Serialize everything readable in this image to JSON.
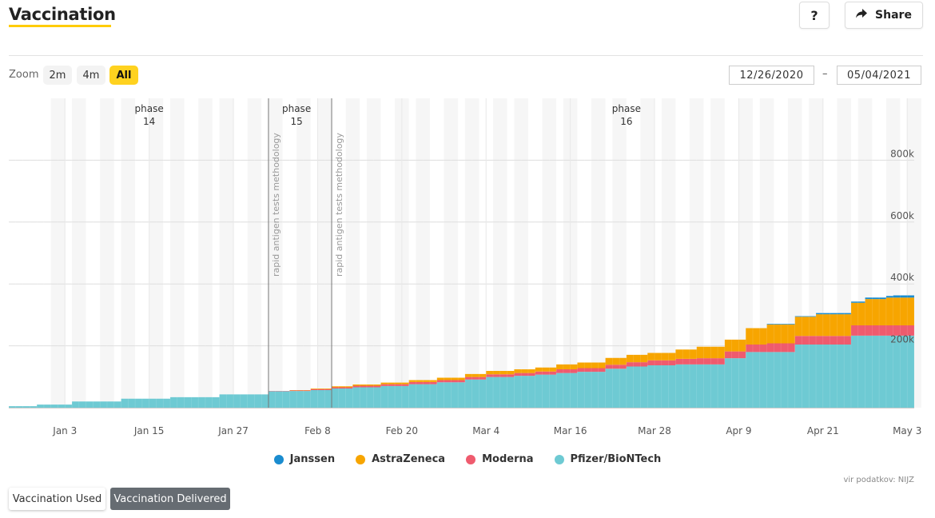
{
  "header": {
    "title": "Vaccination",
    "help_label": "?",
    "share_label": "Share",
    "share_icon": "share-arrow-icon"
  },
  "zoom": {
    "label": "Zoom",
    "options": [
      "2m",
      "4m",
      "All"
    ],
    "selected": "All"
  },
  "range": {
    "from": "12/26/2020",
    "to": "05/04/2021",
    "separator": "–"
  },
  "source": "vir podatkov: NIJZ",
  "tabs": {
    "used_label": "Vaccination Used",
    "delivered_label": "Vaccination Delivered",
    "selected": "Vaccination Delivered"
  },
  "colors": {
    "accent": "#ffcc00",
    "janssen": "#1a8ccf",
    "astrazeneca": "#f7a500",
    "moderna": "#ef5b6e",
    "pfizer": "#6ecad3",
    "active_tab": "#666c72"
  },
  "chart_data": {
    "type": "area",
    "stacking": "normal",
    "step": true,
    "title": "",
    "xlabel": "",
    "ylabel": "",
    "x_start": "2020-12-26",
    "x_end": "2021-05-04",
    "ylim": [
      0,
      1000000
    ],
    "yticks": [
      200000,
      400000,
      600000,
      800000
    ],
    "ytick_labels": [
      "200k",
      "400k",
      "600k",
      "800k"
    ],
    "xticks": [
      "2021-01-03",
      "2021-01-15",
      "2021-01-27",
      "2021-02-08",
      "2021-02-20",
      "2021-03-04",
      "2021-03-16",
      "2021-03-28",
      "2021-04-09",
      "2021-04-21",
      "2021-05-03"
    ],
    "xtick_labels": [
      "Jan 3",
      "Jan 15",
      "Jan 27",
      "Feb 8",
      "Feb 20",
      "Mar 4",
      "Mar 16",
      "Mar 28",
      "Apr 9",
      "Apr 21",
      "May 3"
    ],
    "grid": true,
    "legend_position": "bottom",
    "dates": [
      "2020-12-26",
      "2020-12-30",
      "2021-01-04",
      "2021-01-11",
      "2021-01-18",
      "2021-01-25",
      "2021-02-01",
      "2021-02-04",
      "2021-02-07",
      "2021-02-10",
      "2021-02-13",
      "2021-02-17",
      "2021-02-21",
      "2021-02-25",
      "2021-03-01",
      "2021-03-04",
      "2021-03-08",
      "2021-03-11",
      "2021-03-14",
      "2021-03-17",
      "2021-03-21",
      "2021-03-24",
      "2021-03-27",
      "2021-03-31",
      "2021-04-03",
      "2021-04-07",
      "2021-04-10",
      "2021-04-13",
      "2021-04-17",
      "2021-04-20",
      "2021-04-25",
      "2021-04-27",
      "2021-04-30",
      "2021-05-01",
      "2021-05-04"
    ],
    "series": [
      {
        "name": "Pfizer/BioNTech",
        "values": [
          5000,
          10000,
          20000,
          29000,
          34000,
          43000,
          53000,
          54000,
          57000,
          62000,
          66000,
          70000,
          76000,
          82000,
          91000,
          99000,
          103000,
          107000,
          112000,
          116000,
          126000,
          133000,
          137000,
          140000,
          140000,
          160000,
          180000,
          180000,
          204000,
          204000,
          233000,
          233000,
          233000,
          233000,
          261000
        ]
      },
      {
        "name": "Moderna",
        "values": [
          0,
          0,
          0,
          0,
          0,
          0,
          1000,
          2000,
          3000,
          4000,
          5000,
          6000,
          7000,
          7000,
          8000,
          9000,
          9000,
          10000,
          12000,
          12000,
          13000,
          14000,
          16000,
          18000,
          20000,
          22000,
          24000,
          28000,
          28000,
          28000,
          33000,
          33000,
          33000,
          33000,
          40000
        ]
      },
      {
        "name": "AstraZeneca",
        "values": [
          0,
          0,
          0,
          0,
          0,
          0,
          0,
          1000,
          2000,
          3000,
          4000,
          5000,
          6000,
          8000,
          10000,
          11000,
          12000,
          13000,
          16000,
          18000,
          22000,
          24000,
          24000,
          30000,
          37000,
          38000,
          53000,
          61000,
          62000,
          70000,
          73000,
          85000,
          90000,
          90000,
          100000
        ]
      },
      {
        "name": "Janssen",
        "values": [
          0,
          0,
          0,
          0,
          0,
          0,
          0,
          0,
          0,
          0,
          0,
          0,
          0,
          0,
          0,
          0,
          0,
          0,
          0,
          0,
          0,
          0,
          0,
          0,
          0,
          0,
          0,
          2000,
          2000,
          4000,
          4000,
          5000,
          5000,
          7000,
          10000
        ]
      }
    ],
    "plot_bands": [
      "2021-01-01",
      "2021-01-04",
      "2021-01-08",
      "2021-01-11",
      "2021-01-15",
      "2021-01-18",
      "2021-01-22",
      "2021-01-25",
      "2021-01-29",
      "2021-02-01",
      "2021-02-05",
      "2021-02-08",
      "2021-02-12",
      "2021-02-15",
      "2021-02-19",
      "2021-02-22",
      "2021-02-26",
      "2021-03-01",
      "2021-03-05",
      "2021-03-08",
      "2021-03-12",
      "2021-03-15",
      "2021-03-19",
      "2021-03-22",
      "2021-03-26",
      "2021-03-29",
      "2021-04-02",
      "2021-04-05",
      "2021-04-09",
      "2021-04-12",
      "2021-04-16",
      "2021-04-19",
      "2021-04-23",
      "2021-04-26",
      "2021-04-30",
      "2021-05-03"
    ],
    "plot_lines": [
      {
        "date": "2021-02-01",
        "label": "rapid antigen tests methodology"
      },
      {
        "date": "2021-02-10",
        "label": "rapid antigen tests methodology"
      }
    ],
    "phases": [
      {
        "label": "phase",
        "number": "14",
        "date": "2021-01-15"
      },
      {
        "label": "phase",
        "number": "15",
        "date": "2021-02-05"
      },
      {
        "label": "phase",
        "number": "16",
        "date": "2021-03-24"
      }
    ]
  }
}
